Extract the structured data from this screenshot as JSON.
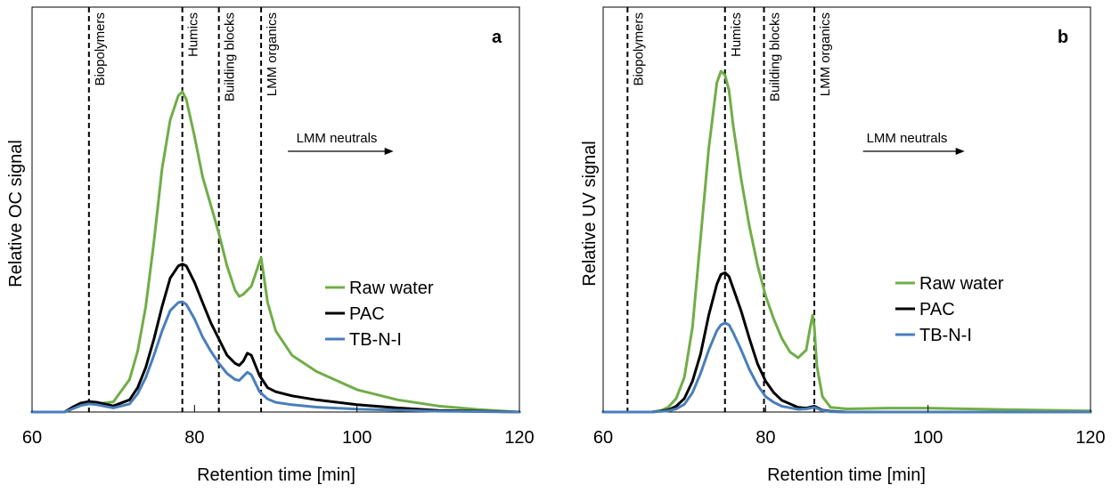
{
  "chart_data": [
    {
      "type": "line",
      "panel_label": "a",
      "xlabel": "Retention time [min]",
      "ylabel": "Relative  OC signal",
      "xlim": [
        60,
        120
      ],
      "xticks": [
        "60",
        "80",
        "100",
        "120"
      ],
      "grid": false,
      "legend_position": "right",
      "regions": [
        {
          "name": "Biopolymers",
          "x": 67
        },
        {
          "name": "Humics",
          "x": 78.5
        },
        {
          "name": "Building blocks",
          "x": 83
        },
        {
          "name": "LMM organics",
          "x": 88.2
        }
      ],
      "annotation": {
        "text": "LMM neutrals",
        "x_start": 91.5,
        "x_end": 104.5
      },
      "series": [
        {
          "name": "Raw water",
          "color": "#70AD47",
          "x": [
            60,
            64,
            65,
            66,
            67,
            68,
            70,
            72,
            73,
            74,
            75,
            76,
            77,
            78,
            78.5,
            79,
            80,
            81,
            82,
            83,
            84,
            85,
            85.5,
            86,
            87,
            87.5,
            88,
            88.2,
            88.5,
            89,
            90,
            92,
            95,
            100,
            105,
            110,
            115,
            120
          ],
          "y": [
            0,
            0,
            1.2,
            2.2,
            2.4,
            2,
            2.5,
            8,
            15,
            26,
            42,
            60,
            72,
            78,
            79,
            77,
            68,
            58,
            51,
            44,
            36,
            30,
            28.5,
            29,
            31,
            34,
            37,
            38,
            34,
            27,
            20,
            14,
            10,
            5.5,
            3,
            1.5,
            0.6,
            0
          ]
        },
        {
          "name": "PAC",
          "color": "#000000",
          "x": [
            60,
            64,
            65,
            66,
            67,
            68,
            70,
            72,
            73,
            74,
            75,
            76,
            77,
            78,
            78.5,
            79,
            80,
            81,
            82,
            83,
            84,
            85,
            85.5,
            86,
            86.5,
            87,
            88,
            89,
            90,
            92,
            95,
            100,
            105,
            110,
            120
          ],
          "y": [
            0,
            0,
            1.2,
            2.2,
            2.6,
            2.4,
            1.5,
            3,
            6,
            11,
            18,
            26,
            33,
            36,
            36.5,
            36,
            32,
            27,
            22,
            18,
            14,
            12,
            11.5,
            12.5,
            14.5,
            14,
            9,
            6,
            5,
            4,
            3,
            1.8,
            1,
            0.4,
            0
          ]
        },
        {
          "name": "TB-N-I",
          "color": "#4A7EBB",
          "x": [
            60,
            64,
            65,
            66,
            67,
            68,
            70,
            72,
            73,
            74,
            75,
            76,
            77,
            78,
            78.5,
            79,
            80,
            81,
            82,
            83,
            84,
            85,
            85.5,
            86,
            86.5,
            87,
            88,
            89,
            90,
            92,
            95,
            100,
            110,
            120
          ],
          "y": [
            0,
            0,
            0.8,
            1.6,
            2,
            1.8,
            1,
            2,
            4.5,
            8.5,
            14,
            20,
            25,
            27,
            27.2,
            26.5,
            23,
            18.5,
            15,
            12,
            9.5,
            8,
            7.8,
            8.8,
            9.8,
            9.2,
            5,
            3.2,
            2.4,
            1.8,
            1.2,
            0.7,
            0.2,
            0
          ]
        }
      ]
    },
    {
      "type": "line",
      "panel_label": "b",
      "xlabel": "Retention time [min]",
      "ylabel": "Relative UV signal",
      "xlim": [
        60,
        120
      ],
      "xticks": [
        "60",
        "80",
        "100",
        "120"
      ],
      "grid": false,
      "legend_position": "right",
      "regions": [
        {
          "name": "Biopolymers",
          "x": 63
        },
        {
          "name": "Humics",
          "x": 75
        },
        {
          "name": "Building blocks",
          "x": 79.8
        },
        {
          "name": "LMM organics",
          "x": 86
        }
      ],
      "annotation": {
        "text": "LMM neutrals",
        "x_start": 92,
        "x_end": 104.5
      },
      "series": [
        {
          "name": "Raw water",
          "color": "#70AD47",
          "x": [
            60,
            66,
            67,
            68,
            69,
            70,
            71,
            72,
            73,
            74,
            74.5,
            75,
            75.5,
            76,
            77,
            78,
            79,
            80,
            81,
            82,
            83,
            84,
            85,
            85.5,
            85.8,
            86,
            86.3,
            87,
            88,
            90,
            95,
            100,
            110,
            120
          ],
          "y": [
            0,
            0,
            0.3,
            1.2,
            3.5,
            9,
            22,
            45,
            68,
            85,
            88,
            87,
            83,
            74,
            60,
            48,
            38,
            30,
            24,
            19,
            15.5,
            14,
            16,
            22,
            25,
            22,
            12,
            4,
            1.2,
            0.8,
            1,
            1,
            0.6,
            0.3
          ]
        },
        {
          "name": "PAC",
          "color": "#000000",
          "x": [
            60,
            66,
            68,
            69,
            70,
            71,
            72,
            73,
            74,
            74.5,
            75,
            75.5,
            76,
            77,
            78,
            79,
            80,
            81,
            82,
            84,
            85,
            86,
            87,
            88,
            90,
            100,
            120
          ],
          "y": [
            0,
            0,
            0.5,
            1.5,
            3.5,
            8,
            15,
            25,
            33,
            35.5,
            36,
            35,
            32,
            26,
            19,
            12.5,
            8,
            5,
            3,
            1.2,
            1,
            1.5,
            0.5,
            0.2,
            0,
            0,
            0
          ]
        },
        {
          "name": "TB-N-I",
          "color": "#4A7EBB",
          "x": [
            60,
            66,
            68,
            69,
            70,
            71,
            72,
            73,
            74,
            74.5,
            75,
            75.5,
            76,
            77,
            78,
            79,
            80,
            81,
            82,
            84,
            85,
            86,
            87,
            88,
            90,
            100,
            120
          ],
          "y": [
            0,
            0,
            0.3,
            0.8,
            2,
            5,
            10,
            16,
            21,
            22.5,
            23,
            22.5,
            20.5,
            16,
            11,
            7,
            4,
            2.5,
            1.5,
            0.7,
            0.8,
            1.2,
            0.4,
            0.1,
            0,
            0,
            0
          ]
        }
      ]
    }
  ]
}
